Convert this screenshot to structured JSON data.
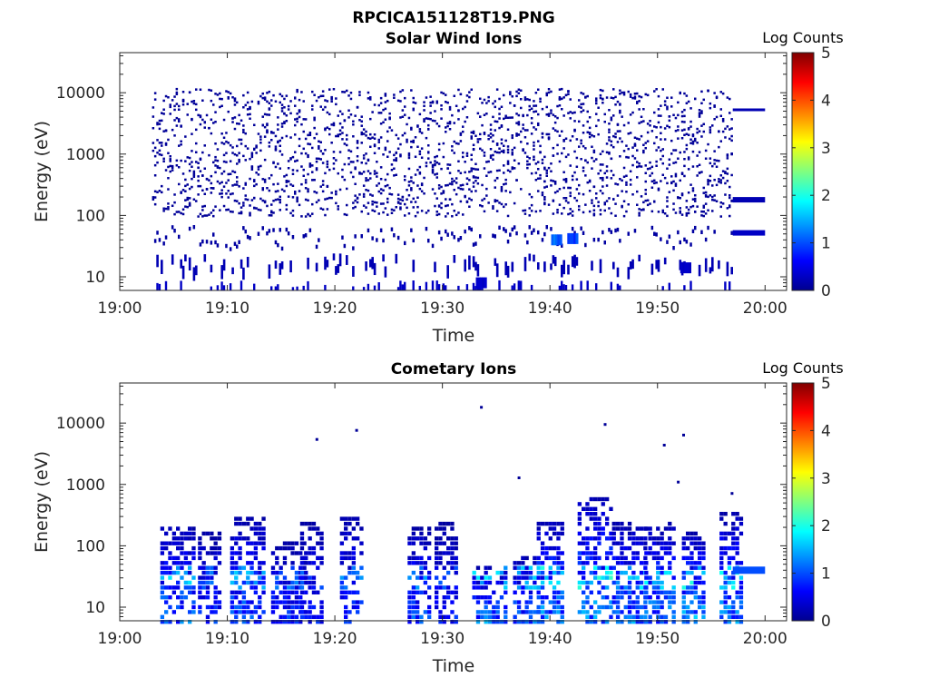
{
  "figure": {
    "title": "RPCICA151128T19.PNG"
  },
  "colorbar": {
    "label": "Log Counts",
    "ticks": [
      "0",
      "1",
      "2",
      "3",
      "4",
      "5"
    ],
    "range": [
      0,
      5
    ],
    "colormap": "jet",
    "stops": [
      "#00008f",
      "#0000ff",
      "#00ffff",
      "#ffff00",
      "#ff0000",
      "#800000"
    ]
  },
  "chart_data": [
    {
      "type": "heatmap",
      "title": "Solar Wind Ions",
      "xlabel": "Time",
      "ylabel": "Energy (eV)",
      "xticks": [
        "19:00",
        "19:10",
        "19:20",
        "19:30",
        "19:40",
        "19:50",
        "20:00"
      ],
      "yticks": [
        "10",
        "100",
        "1000",
        "10000"
      ],
      "x_range_minutes": [
        0,
        62
      ],
      "y_range_ev": [
        6,
        45000
      ],
      "yscale": "log",
      "data_start_minute": 3,
      "data_end_minute": 57,
      "tracks": [
        {
          "from_minute": 57,
          "to_minute": 60,
          "energy_ev": 5000,
          "log_counts": 0.2
        },
        {
          "from_minute": 57,
          "to_minute": 60,
          "energy_ev": 180,
          "log_counts": 0.2
        },
        {
          "from_minute": 57,
          "to_minute": 60,
          "energy_ev": 52,
          "log_counts": 0.3
        }
      ],
      "hotspots": [
        {
          "minute": 40.5,
          "energy_ev": 40,
          "log_counts": 1.3
        },
        {
          "minute": 42,
          "energy_ev": 42,
          "log_counts": 1.1
        },
        {
          "minute": 52.5,
          "energy_ev": 14,
          "log_counts": 0.4
        },
        {
          "minute": 33.5,
          "energy_ev": 8,
          "log_counts": 0.4
        }
      ]
    },
    {
      "type": "heatmap",
      "title": "Cometary Ions",
      "xlabel": "Time",
      "ylabel": "Energy (eV)",
      "xticks": [
        "19:00",
        "19:10",
        "19:20",
        "19:30",
        "19:40",
        "19:50",
        "20:00"
      ],
      "yticks": [
        "10",
        "100",
        "1000",
        "10000"
      ],
      "x_range_minutes": [
        0,
        62
      ],
      "y_range_ev": [
        6,
        45000
      ],
      "yscale": "log",
      "bursts": [
        {
          "minute": 4.5,
          "e_high_ev": 240,
          "intensity": 1.5
        },
        {
          "minute": 8,
          "e_high_ev": 180,
          "intensity": 1.1
        },
        {
          "minute": 11,
          "e_high_ev": 330,
          "intensity": 1.4
        },
        {
          "minute": 14.8,
          "e_high_ev": 130,
          "intensity": 1.1
        },
        {
          "minute": 17.5,
          "e_high_ev": 260,
          "intensity": 1.0
        },
        {
          "minute": 21.2,
          "e_high_ev": 330,
          "intensity": 1.2
        },
        {
          "minute": 27.5,
          "e_high_ev": 220,
          "intensity": 1.3
        },
        {
          "minute": 30,
          "e_high_ev": 250,
          "intensity": 1.0
        },
        {
          "minute": 33.5,
          "e_high_ev": 50,
          "intensity": 1.6
        },
        {
          "minute": 37.3,
          "e_high_ev": 80,
          "intensity": 1.4
        },
        {
          "minute": 39.5,
          "e_high_ev": 280,
          "intensity": 1.7
        },
        {
          "minute": 43.3,
          "e_high_ev": 650,
          "intensity": 1.8
        },
        {
          "minute": 46.5,
          "e_high_ev": 250,
          "intensity": 1.6
        },
        {
          "minute": 49.5,
          "e_high_ev": 250,
          "intensity": 1.6
        },
        {
          "minute": 53,
          "e_high_ev": 180,
          "intensity": 1.8
        },
        {
          "minute": 56.5,
          "e_high_ev": 380,
          "intensity": 1.7
        }
      ],
      "outliers": [
        {
          "minute": 18.2,
          "energy_ev": 5700
        },
        {
          "minute": 21.9,
          "energy_ev": 8000
        },
        {
          "minute": 33.5,
          "energy_ev": 19000
        },
        {
          "minute": 37,
          "energy_ev": 1350
        },
        {
          "minute": 45,
          "energy_ev": 10000
        },
        {
          "minute": 50.5,
          "energy_ev": 4600
        },
        {
          "minute": 51.8,
          "energy_ev": 1150
        },
        {
          "minute": 52.3,
          "energy_ev": 6700
        },
        {
          "minute": 56.8,
          "energy_ev": 750
        }
      ],
      "tracks": [
        {
          "from_minute": 57,
          "to_minute": 60,
          "energy_ev": 40,
          "log_counts": 1.0
        }
      ]
    }
  ]
}
